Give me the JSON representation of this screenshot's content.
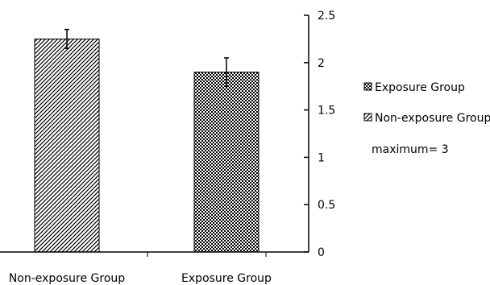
{
  "chart_data": {
    "type": "bar",
    "categories": [
      "Non-exposure  Group",
      "Exposure Group"
    ],
    "values": [
      2.25,
      1.9
    ],
    "errors": [
      0.1,
      0.15
    ],
    "patterns": [
      "diagonal-hatch",
      "checkerboard"
    ],
    "ylim": [
      0,
      2.5
    ],
    "yticks": [
      0,
      0.5,
      1,
      1.5,
      2,
      2.5
    ],
    "ytick_labels": [
      "0",
      "0.5",
      "1",
      "1.5",
      "2",
      "2.5"
    ],
    "y_axis_position": "right",
    "grid": false,
    "legend": {
      "placement": "right",
      "items": [
        {
          "label": "Exposure Group",
          "pattern": "checkerboard"
        },
        {
          "label": "Non-exposure  Group",
          "pattern": "diagonal-hatch"
        }
      ],
      "note": "maximum= 3"
    },
    "colors": {
      "bar_outline": "#000000",
      "pattern_ink": "#000000",
      "background": "#ffffff"
    }
  }
}
